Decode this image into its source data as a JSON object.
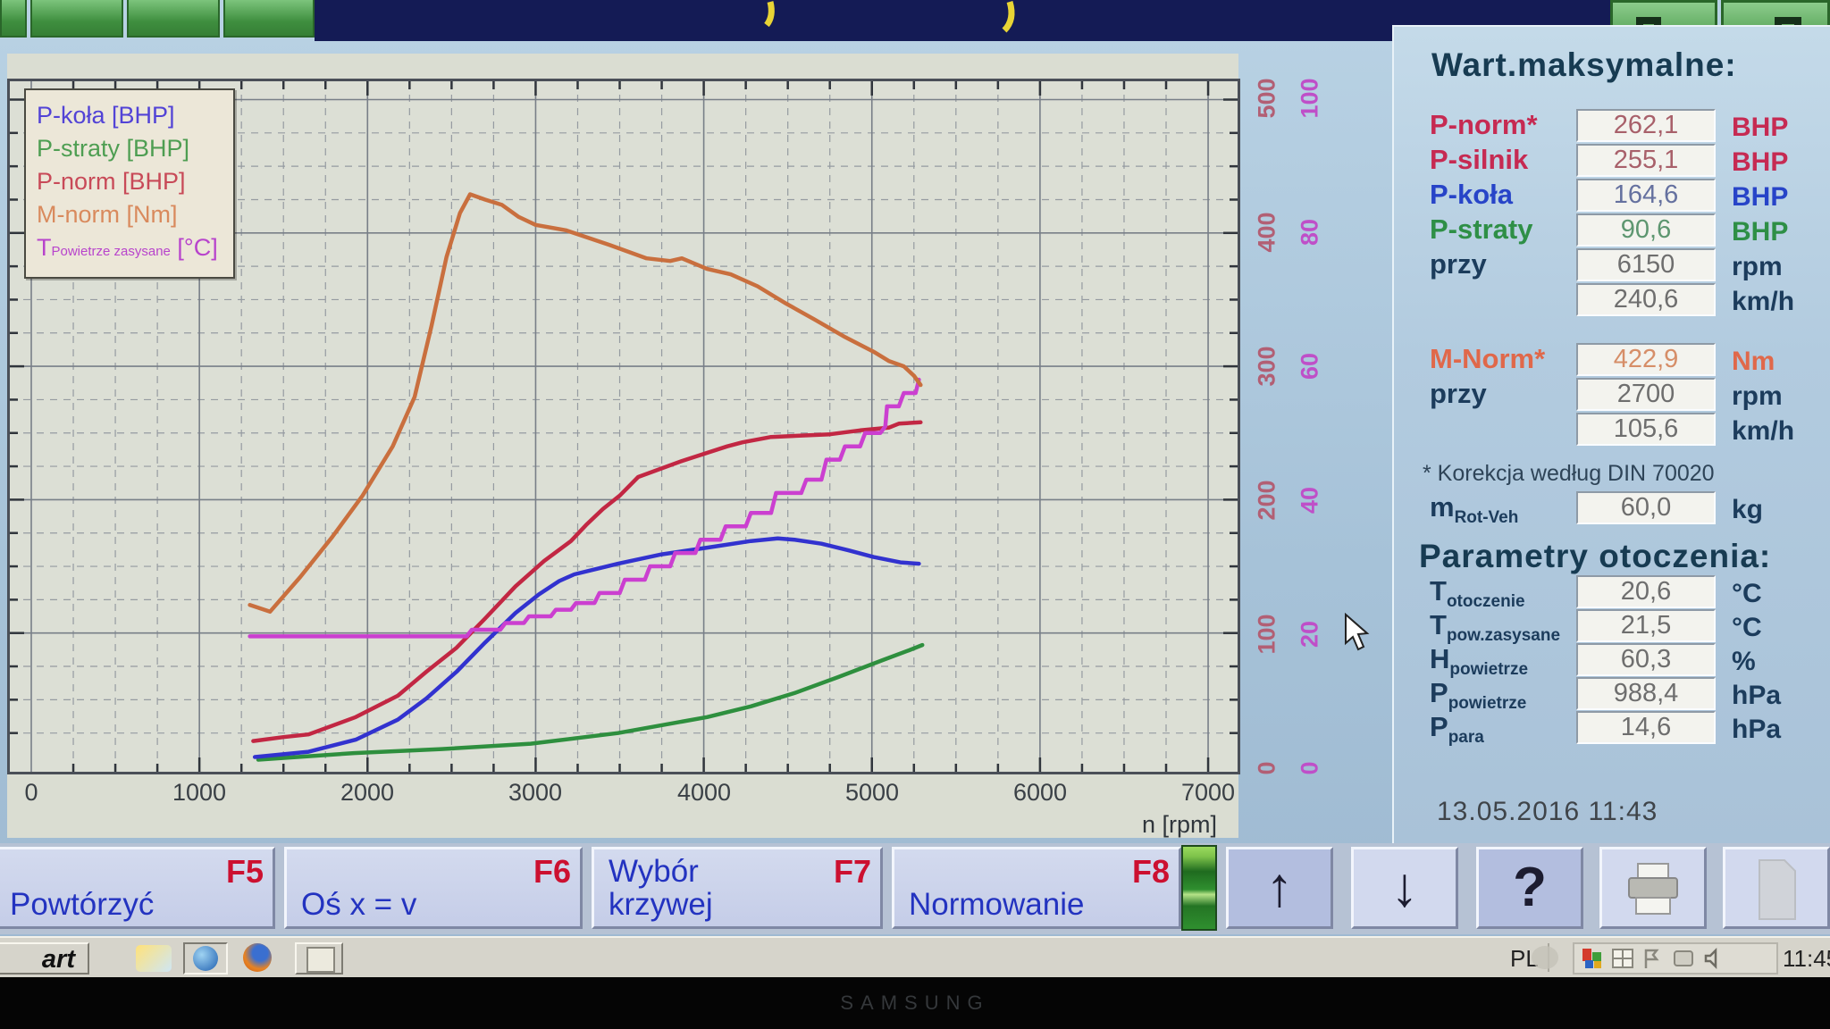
{
  "titlebar": {
    "note": "app title bar (text cut off at top of photo)"
  },
  "legend": {
    "items": [
      {
        "label": "P-koła [BHP]",
        "color": "#5243d6"
      },
      {
        "label": "P-straty [BHP]",
        "color": "#4e9e52"
      },
      {
        "label": "P-norm [BHP]",
        "color": "#c84a58"
      },
      {
        "label": "M-norm [Nm]",
        "color": "#d98a5d"
      },
      {
        "main": "T",
        "sub": "Powietrze zasysane",
        "rest": " [°C]",
        "color": "#b844cc"
      }
    ]
  },
  "chart_data": {
    "type": "line",
    "xlabel": "n [rpm]",
    "x_ticks": [
      0,
      1000,
      2000,
      3000,
      4000,
      5000,
      6000,
      7000
    ],
    "xlim": [
      0,
      7300
    ],
    "left_axis": {
      "ticks": [
        500,
        400,
        300,
        200,
        100,
        0
      ],
      "color": "#b25f74",
      "range": [
        0,
        500
      ]
    },
    "right_axis": {
      "ticks": [
        100,
        80,
        60,
        40,
        20,
        0
      ],
      "color": "#bf4fc8",
      "range": [
        0,
        100
      ]
    },
    "grid": {
      "major": "solid",
      "minor": "dashed",
      "minor_x_step_rpm": 250,
      "minor_y_step_left": 25
    },
    "series": [
      {
        "name": "P-straty",
        "unit": "BHP",
        "axis": "left",
        "color": "#2e8f3e",
        "points": [
          [
            1350,
            5
          ],
          [
            1920,
            10
          ],
          [
            2440,
            13
          ],
          [
            2970,
            17
          ],
          [
            3490,
            25
          ],
          [
            4020,
            37
          ],
          [
            4280,
            45
          ],
          [
            4540,
            55
          ],
          [
            4800,
            67
          ],
          [
            5070,
            80
          ],
          [
            5220,
            87
          ],
          [
            5300,
            91
          ]
        ]
      },
      {
        "name": "P-koła",
        "unit": "BHP",
        "axis": "left",
        "color": "#3232cf",
        "points": [
          [
            1330,
            7
          ],
          [
            1650,
            11
          ],
          [
            1930,
            20
          ],
          [
            2180,
            35
          ],
          [
            2350,
            51
          ],
          [
            2530,
            71
          ],
          [
            2700,
            93
          ],
          [
            2880,
            115
          ],
          [
            3020,
            129
          ],
          [
            3140,
            139
          ],
          [
            3230,
            144
          ],
          [
            3490,
            152
          ],
          [
            3750,
            159
          ],
          [
            4020,
            164
          ],
          [
            4280,
            169
          ],
          [
            4440,
            171
          ],
          [
            4540,
            170
          ],
          [
            4700,
            167
          ],
          [
            4860,
            162
          ],
          [
            5010,
            157
          ],
          [
            5170,
            153
          ],
          [
            5280,
            152
          ]
        ]
      },
      {
        "name": "P-norm",
        "unit": "BHP",
        "axis": "left",
        "color": "#c22743",
        "points": [
          [
            1320,
            19
          ],
          [
            1500,
            22
          ],
          [
            1650,
            24
          ],
          [
            1930,
            37
          ],
          [
            2180,
            53
          ],
          [
            2350,
            71
          ],
          [
            2530,
            89
          ],
          [
            2700,
            111
          ],
          [
            2880,
            135
          ],
          [
            3050,
            154
          ],
          [
            3210,
            169
          ],
          [
            3300,
            181
          ],
          [
            3400,
            193
          ],
          [
            3500,
            203
          ],
          [
            3610,
            217
          ],
          [
            3870,
            229
          ],
          [
            4140,
            240
          ],
          [
            4230,
            243
          ],
          [
            4400,
            247
          ],
          [
            4750,
            249
          ],
          [
            4930,
            252
          ],
          [
            5100,
            254
          ],
          [
            5160,
            257
          ],
          [
            5290,
            258
          ]
        ]
      },
      {
        "name": "T-powietrze-zasysane",
        "unit": "°C",
        "axis": "right",
        "color": "#cb3fd0",
        "points": [
          [
            1300,
            19.5
          ],
          [
            2590,
            19.5
          ],
          [
            2620,
            20.5
          ],
          [
            2790,
            20.5
          ],
          [
            2820,
            21.5
          ],
          [
            2930,
            21.5
          ],
          [
            2960,
            22.5
          ],
          [
            3090,
            22.5
          ],
          [
            3120,
            23.5
          ],
          [
            3210,
            23.5
          ],
          [
            3240,
            24.5
          ],
          [
            3350,
            24.5
          ],
          [
            3380,
            26
          ],
          [
            3500,
            26
          ],
          [
            3530,
            28
          ],
          [
            3650,
            28
          ],
          [
            3680,
            30
          ],
          [
            3800,
            30
          ],
          [
            3830,
            32
          ],
          [
            3950,
            32
          ],
          [
            3980,
            34
          ],
          [
            4100,
            34
          ],
          [
            4130,
            36
          ],
          [
            4250,
            36
          ],
          [
            4280,
            38
          ],
          [
            4400,
            38
          ],
          [
            4430,
            41
          ],
          [
            4580,
            41
          ],
          [
            4610,
            43
          ],
          [
            4700,
            43
          ],
          [
            4730,
            46
          ],
          [
            4810,
            46
          ],
          [
            4840,
            48
          ],
          [
            4930,
            48
          ],
          [
            4960,
            50
          ],
          [
            5050,
            50
          ],
          [
            5080,
            51
          ],
          [
            5090,
            54
          ],
          [
            5160,
            54
          ],
          [
            5190,
            56
          ],
          [
            5260,
            56
          ],
          [
            5280,
            58
          ]
        ]
      },
      {
        "name": "M-norm",
        "unit": "Nm",
        "axis": "left",
        "color": "#c96f3e",
        "points": [
          [
            1300,
            121
          ],
          [
            1420,
            116
          ],
          [
            1600,
            142
          ],
          [
            1790,
            172
          ],
          [
            1970,
            203
          ],
          [
            2150,
            240
          ],
          [
            2280,
            277
          ],
          [
            2380,
            330
          ],
          [
            2470,
            382
          ],
          [
            2550,
            415
          ],
          [
            2610,
            429
          ],
          [
            2700,
            425
          ],
          [
            2800,
            421
          ],
          [
            2900,
            412
          ],
          [
            3000,
            406
          ],
          [
            3180,
            402
          ],
          [
            3440,
            391
          ],
          [
            3660,
            381
          ],
          [
            3800,
            379
          ],
          [
            3870,
            381
          ],
          [
            4020,
            373
          ],
          [
            4160,
            369
          ],
          [
            4320,
            360
          ],
          [
            4490,
            347
          ],
          [
            4660,
            335
          ],
          [
            4840,
            322
          ],
          [
            5010,
            311
          ],
          [
            5100,
            304
          ],
          [
            5190,
            300
          ],
          [
            5250,
            293
          ],
          [
            5290,
            286
          ]
        ]
      }
    ]
  },
  "panel": {
    "title": "Wart.maksymalne:",
    "rows": [
      {
        "label": "P-norm*",
        "sub": "",
        "value": "262,1",
        "unit": "BHP",
        "lcolor": "#c62a52",
        "vcolor": "#a8606a",
        "ucolor": "#c62a52"
      },
      {
        "label": "P-silnik",
        "sub": "",
        "value": "255,1",
        "unit": "BHP",
        "lcolor": "#c62a52",
        "vcolor": "#a8606a",
        "ucolor": "#c62a52"
      },
      {
        "label": "P-koła",
        "sub": "",
        "value": "164,6",
        "unit": "BHP",
        "lcolor": "#2744c8",
        "vcolor": "#65719f",
        "ucolor": "#2744c8"
      },
      {
        "label": "P-straty",
        "sub": "",
        "value": "90,6",
        "unit": "BHP",
        "lcolor": "#2e8f46",
        "vcolor": "#5d9670",
        "ucolor": "#2e8f46"
      },
      {
        "label": "przy",
        "sub": "",
        "value": "6150",
        "unit": "rpm",
        "lcolor": "#1c3c5c",
        "vcolor": "#6e6e6e",
        "ucolor": "#1c3c5c"
      },
      {
        "label": "",
        "sub": "",
        "value": "240,6",
        "unit": "km/h",
        "lcolor": "#1c3c5c",
        "vcolor": "#6e6e6e",
        "ucolor": "#1c3c5c"
      },
      {
        "label": "M-Norm*",
        "sub": "",
        "value": "422,9",
        "unit": "Nm",
        "lcolor": "#e0684a",
        "vcolor": "#d68e68",
        "ucolor": "#e0684a",
        "gap": true
      },
      {
        "label": "przy",
        "sub": "",
        "value": "2700",
        "unit": "rpm",
        "lcolor": "#1c3c5c",
        "vcolor": "#6e6e6e",
        "ucolor": "#1c3c5c"
      },
      {
        "label": "",
        "sub": "",
        "value": "105,6",
        "unit": "km/h",
        "lcolor": "#1c3c5c",
        "vcolor": "#6e6e6e",
        "ucolor": "#1c3c5c"
      }
    ],
    "korekcja_note": "* Korekcja według DIN 70020",
    "mrot_row": {
      "label": "m",
      "sub": "Rot-Veh",
      "value": "60,0",
      "unit": "kg",
      "lcolor": "#1c3c5c",
      "vcolor": "#6e6e6e",
      "ucolor": "#1c3c5c"
    },
    "params_title": "Parametry otoczenia:",
    "param_rows": [
      {
        "label": "T",
        "sub": "otoczenie",
        "value": "20,6",
        "unit": "°C",
        "lcolor": "#1c3c5c",
        "vcolor": "#6e6e6e",
        "ucolor": "#1c3c5c"
      },
      {
        "label": "T",
        "sub": "pow.zasysane",
        "value": "21,5",
        "unit": "°C",
        "lcolor": "#1c3c5c",
        "vcolor": "#6e6e6e",
        "ucolor": "#1c3c5c"
      },
      {
        "label": "H",
        "sub": "powietrze",
        "value": "60,3",
        "unit": "%",
        "lcolor": "#1c3c5c",
        "vcolor": "#6e6e6e",
        "ucolor": "#1c3c5c"
      },
      {
        "label": "P",
        "sub": "powietrze",
        "value": "988,4",
        "unit": "hPa",
        "lcolor": "#1c3c5c",
        "vcolor": "#6e6e6e",
        "ucolor": "#1c3c5c"
      },
      {
        "label": "P",
        "sub": "para",
        "value": "14,6",
        "unit": "hPa",
        "lcolor": "#1c3c5c",
        "vcolor": "#6e6e6e",
        "ucolor": "#1c3c5c"
      }
    ],
    "datetime": "13.05.2016  11:43"
  },
  "fkeys": [
    {
      "label": "Powtórzyć",
      "label2": "",
      "fkey": "F5"
    },
    {
      "label": "Oś x = v",
      "label2": "",
      "fkey": "F6"
    },
    {
      "label": "Wybór",
      "label2": "krzywej",
      "fkey": "F7"
    },
    {
      "label": "Normowanie",
      "label2": "",
      "fkey": "F8"
    }
  ],
  "icon_buttons": [
    {
      "icon": "arrow-up-icon",
      "glyph": "↑",
      "dark": true
    },
    {
      "icon": "arrow-down-icon",
      "glyph": "↓",
      "dark": false
    },
    {
      "icon": "help-icon",
      "glyph": "?",
      "dark": true
    },
    {
      "icon": "printer-icon",
      "glyph": "",
      "dark": false
    },
    {
      "icon": "document-icon",
      "glyph": "",
      "dark": false
    }
  ],
  "taskbar": {
    "start_label": "art",
    "language_indicator": "PL",
    "clock": "11:45"
  },
  "bezel": {
    "monitor_brand": "SAMSUNG"
  }
}
